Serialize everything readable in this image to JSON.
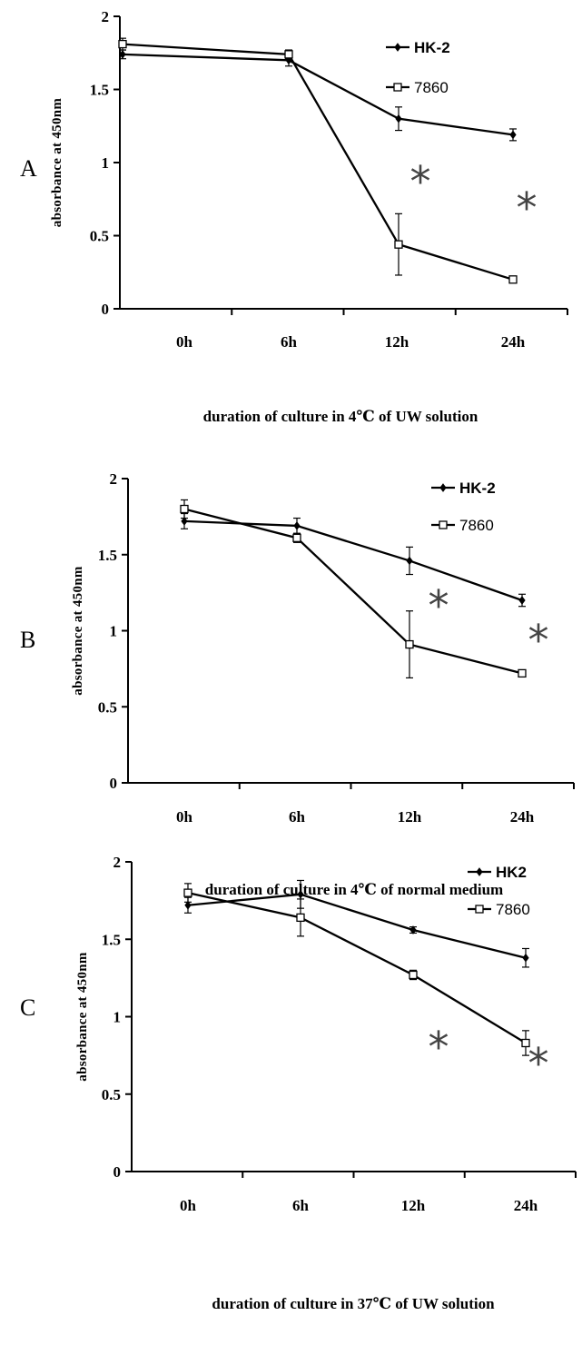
{
  "chart_data": [
    {
      "type": "line",
      "panel_label": "A",
      "categories": [
        "0h",
        "6h",
        "12h",
        "24h"
      ],
      "xlabel": "duration of culture in 4℃ of UW solution",
      "ylabel": "absorbance at 450nm",
      "ylim": [
        0,
        2
      ],
      "yticks": [
        "0",
        "0.5",
        "1",
        "1.5",
        "2"
      ],
      "legend_position": "top-right",
      "series": [
        {
          "name": "HK-2",
          "marker": "diamond",
          "values": [
            1.74,
            1.7,
            1.3,
            1.19
          ],
          "errors": [
            0.03,
            0.04,
            0.08,
            0.04
          ]
        },
        {
          "name": "7860",
          "marker": "square",
          "values": [
            1.81,
            1.74,
            0.44,
            0.2
          ],
          "errors": [
            0.04,
            0.03,
            0.21,
            0.02
          ]
        }
      ],
      "annotations": [
        {
          "text": "*",
          "near": "12h"
        },
        {
          "text": "*",
          "near": "24h"
        }
      ]
    },
    {
      "type": "line",
      "panel_label": "B",
      "categories": [
        "0h",
        "6h",
        "12h",
        "24h"
      ],
      "xlabel": "duration of culture in 4℃ of normal medium",
      "ylabel": "absorbance at 450nm",
      "ylim": [
        0,
        2
      ],
      "yticks": [
        "0",
        "0.5",
        "1",
        "1.5",
        "2"
      ],
      "legend_position": "top-right",
      "series": [
        {
          "name": "HK-2",
          "marker": "diamond",
          "values": [
            1.72,
            1.69,
            1.46,
            1.2
          ],
          "errors": [
            0.05,
            0.05,
            0.09,
            0.04
          ]
        },
        {
          "name": "7860",
          "marker": "square",
          "values": [
            1.8,
            1.61,
            0.91,
            0.72
          ],
          "errors": [
            0.06,
            0.03,
            0.22,
            0.02
          ]
        }
      ],
      "annotations": [
        {
          "text": "*",
          "near": "12h"
        },
        {
          "text": "*",
          "near": "24h"
        }
      ]
    },
    {
      "type": "line",
      "panel_label": "C",
      "categories": [
        "0h",
        "6h",
        "12h",
        "24h"
      ],
      "xlabel": "duration of culture in 37℃ of UW solution",
      "ylabel": "absorbance at 450nm",
      "ylim": [
        0,
        2
      ],
      "yticks": [
        "0",
        "0.5",
        "1",
        "1.5",
        "2"
      ],
      "legend_position": "top-right",
      "series": [
        {
          "name": "HK2",
          "marker": "diamond",
          "values": [
            1.72,
            1.79,
            1.56,
            1.38
          ],
          "errors": [
            0.05,
            0.09,
            0.02,
            0.06
          ]
        },
        {
          "name": "7860",
          "marker": "square",
          "values": [
            1.8,
            1.64,
            1.27,
            0.83
          ],
          "errors": [
            0.06,
            0.12,
            0.03,
            0.08
          ]
        }
      ],
      "annotations": [
        {
          "text": "*",
          "near": "12h"
        },
        {
          "text": "*",
          "near": "24h"
        }
      ]
    }
  ]
}
